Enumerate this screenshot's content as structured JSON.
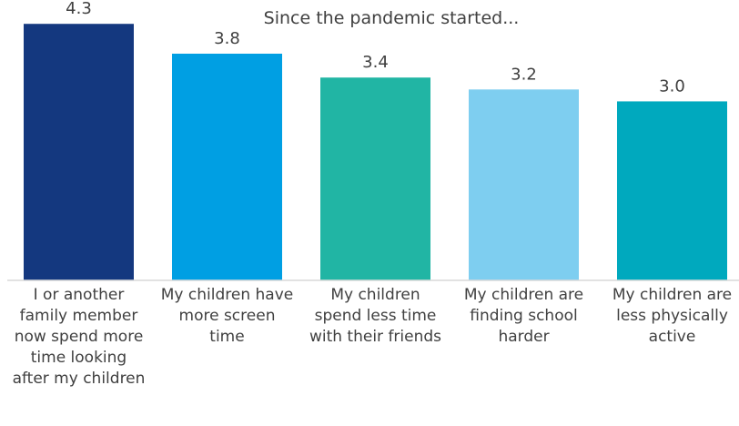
{
  "chart_data": {
    "type": "bar",
    "title": "Since the pandemic started...",
    "categories": [
      "I or another family member now spend more time looking after my children",
      "My children have more screen time",
      "My children spend less time with their friends",
      "My children are finding school harder",
      "My children are less physically active"
    ],
    "category_lines": [
      "I or another\nfamily member\nnow spend more\ntime looking\nafter my children",
      "My children have\nmore screen\ntime",
      "My children\nspend less time\nwith their friends",
      "My children are\nfinding school\nharder",
      "My children are\nless physically\nactive"
    ],
    "values": [
      4.3,
      3.8,
      3.4,
      3.2,
      3.0
    ],
    "value_labels": [
      "4.3",
      "3.8",
      "3.4",
      "3.2",
      "3.0"
    ],
    "colors": [
      "#14387f",
      "#009fe3",
      "#21b5a4",
      "#7ecef0",
      "#00a9be"
    ],
    "xlabel": "",
    "ylabel": "",
    "ylim": [
      0,
      4.7
    ],
    "grid": false,
    "legend": "none"
  }
}
